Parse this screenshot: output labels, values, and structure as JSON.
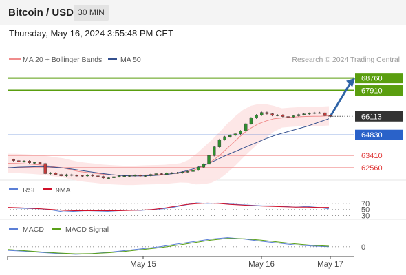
{
  "header": {
    "title": "Bitcoin / USD",
    "timeframe": "30 MIN",
    "datetime": "Thursday, May 16, 2024 3:55:48 PM CET"
  },
  "colors": {
    "green_level": "#5a9e0f",
    "blue_level": "#2a62c9",
    "red_level": "#f08c8c",
    "bollinger_fill": "#fde3e3",
    "ma20": "#f08c8c",
    "ma50": "#34508e",
    "arrow": "#2e63a6",
    "candle_up": "#2f8f2f",
    "candle_down": "#c43a3a",
    "rsi": "#5b7fd6",
    "rsi_ma": "#d0102a",
    "macd": "#5b7fd6",
    "macd_signal": "#5aa018",
    "current_price_bg": "#333333"
  },
  "legend": {
    "ma20": "MA 20 + Bollinger Bands",
    "ma50": "MA 50",
    "credit": "Research © 2024 Trading Central",
    "rsi": "RSI",
    "rsi_ma": "9MA",
    "macd": "MACD",
    "macd_signal": "MACD Signal"
  },
  "chart_data": {
    "type": "line",
    "title": "Bitcoin / USD",
    "x_labels": [
      "May 15",
      "May 16",
      "May 17"
    ],
    "ylim": [
      61700,
      69600
    ],
    "levels": [
      {
        "label": "68760",
        "value": 68760,
        "kind": "resistance"
      },
      {
        "label": "67910",
        "value": 67910,
        "kind": "resistance"
      },
      {
        "label": "66113",
        "value": 66113,
        "kind": "current"
      },
      {
        "label": "64830",
        "value": 64830,
        "kind": "pivot"
      },
      {
        "label": "63410",
        "value": 63410,
        "kind": "support"
      },
      {
        "label": "62560",
        "value": 62560,
        "kind": "support"
      }
    ],
    "price": [
      63120,
      63050,
      62980,
      63020,
      62900,
      62920,
      62850,
      62150,
      62200,
      62100,
      62000,
      62080,
      62030,
      62020,
      61990,
      62060,
      62000,
      61950,
      61850,
      61860,
      61940,
      62000,
      62000,
      62010,
      62040,
      61990,
      62010,
      62100,
      62150,
      62100,
      62180,
      62200,
      62210,
      62260,
      62300,
      62400,
      62600,
      62800,
      63400,
      64000,
      64500,
      64700,
      64800,
      64900,
      65100,
      65600,
      66000,
      66200,
      66380,
      66290,
      66180,
      66200,
      66100,
      66070,
      66150,
      66230,
      66280,
      66320,
      66360,
      66360,
      66160,
      66110
    ],
    "ma20": [
      62860,
      62850,
      62830,
      62800,
      62760,
      62700,
      62620,
      62550,
      62420,
      62300,
      62240,
      62180,
      62120,
      62080,
      62050,
      62030,
      62030,
      62050,
      62070,
      62080,
      62100,
      62150,
      62200,
      62300,
      62450,
      62700,
      63000,
      63400,
      63900,
      64400,
      64900,
      65300,
      65600,
      65800,
      65950,
      66000,
      66050,
      66080,
      66100,
      66110,
      66120,
      66150
    ],
    "ma50": [
      62550,
      62600,
      62620,
      62640,
      62620,
      62560,
      62480,
      62370,
      62270,
      62170,
      62080,
      62020,
      61990,
      62000,
      62020,
      62070,
      62160,
      62300,
      62500,
      62750,
      63050,
      63400,
      63700,
      64000,
      64300,
      64600,
      64850,
      65050,
      65250,
      65450,
      65700,
      65950
    ],
    "rsi": [
      56,
      54,
      53,
      52,
      48,
      42,
      44,
      46,
      45,
      44,
      46,
      48,
      47,
      50,
      52,
      58,
      65,
      72,
      70,
      71,
      68,
      66,
      64,
      62,
      62,
      60,
      58,
      60,
      57,
      52
    ],
    "rsi_9ma": [
      57,
      56,
      54,
      52,
      50,
      47,
      46,
      46,
      46,
      46,
      46,
      47,
      48,
      50,
      54,
      60,
      66,
      69,
      71,
      70,
      67,
      65,
      63,
      61,
      60,
      59,
      58,
      58,
      57,
      57
    ],
    "rsi_levels": [
      "70",
      "50",
      "30"
    ],
    "macd": [
      -200,
      -250,
      -320,
      -380,
      -420,
      -380,
      -300,
      -200,
      -100,
      0,
      150,
      280,
      420,
      500,
      420,
      300,
      200,
      100,
      40,
      0
    ],
    "macd_signal": [
      -150,
      -220,
      -290,
      -350,
      -390,
      -380,
      -330,
      -250,
      -150,
      -50,
      80,
      220,
      360,
      460,
      440,
      360,
      260,
      160,
      80,
      30
    ],
    "macd_zero_label": "0"
  }
}
